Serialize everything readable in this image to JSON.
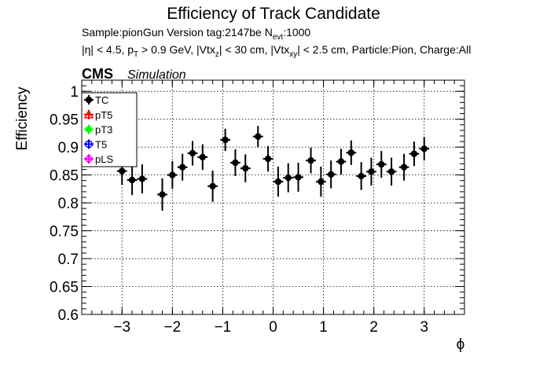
{
  "header": {
    "title": "Efficiency of Track Candidate",
    "sample_line_prefix": "Sample:pionGun   Version tag:2147be  N",
    "sample_line_sub": "evt",
    "sample_line_suffix": ":1000",
    "cuts_line": {
      "seg1": "|η| < 4.5, p",
      "sub1": "T",
      "seg2": " > 0.9 GeV, |Vtx",
      "sub2": "z",
      "seg3": "| < 30 cm, |Vtx",
      "sub3": "xy",
      "seg4": "| < 2.5 cm, Particle:Pion, Charge:All"
    },
    "cms_label": "CMS",
    "sim_label": "Simulation"
  },
  "colors": {
    "tc": "#000000",
    "pt5": "#ff0000",
    "pt3": "#00ff00",
    "t5": "#0000ff",
    "pls": "#ff00ff"
  },
  "chart_data": {
    "type": "scatter",
    "xlabel": "ϕ",
    "ylabel": "Efficiency",
    "xlim": [
      -3.8,
      3.8
    ],
    "ylim": [
      0.6,
      1.02
    ],
    "grid": true,
    "legend_position": "top-left",
    "x_ticks": [
      -3,
      -2,
      -1,
      0,
      1,
      2,
      3
    ],
    "x_tick_labels": [
      "−3",
      "−2",
      "−1",
      "0",
      "1",
      "2",
      "3"
    ],
    "y_ticks": [
      0.6,
      0.65,
      0.7,
      0.75,
      0.8,
      0.85,
      0.9,
      0.95,
      1.0
    ],
    "y_tick_labels": [
      "0.6",
      "0.65",
      "0.7",
      "0.75",
      "0.8",
      "0.85",
      "0.9",
      "0.95",
      "1"
    ],
    "legend": [
      {
        "label": "TC",
        "color_key": "tc",
        "marker": "circle-filled"
      },
      {
        "label": "pT5",
        "color_key": "pt5",
        "marker": "triangle-open"
      },
      {
        "label": "pT3",
        "color_key": "pt3",
        "marker": "circle-filled"
      },
      {
        "label": "T5",
        "color_key": "t5",
        "marker": "circle-open"
      },
      {
        "label": "pLS",
        "color_key": "pls",
        "marker": "diamond-cross"
      }
    ],
    "series": [
      {
        "name": "TC",
        "x_half_width": 0.1,
        "points": [
          {
            "x": -3.0,
            "y": 0.857,
            "err": 0.025
          },
          {
            "x": -2.8,
            "y": 0.841,
            "err": 0.027
          },
          {
            "x": -2.6,
            "y": 0.843,
            "err": 0.026
          },
          {
            "x": -2.2,
            "y": 0.815,
            "err": 0.029
          },
          {
            "x": -2.0,
            "y": 0.85,
            "err": 0.025
          },
          {
            "x": -1.8,
            "y": 0.864,
            "err": 0.024
          },
          {
            "x": -1.6,
            "y": 0.889,
            "err": 0.022
          },
          {
            "x": -1.4,
            "y": 0.882,
            "err": 0.023
          },
          {
            "x": -1.2,
            "y": 0.83,
            "err": 0.028
          },
          {
            "x": -0.95,
            "y": 0.913,
            "err": 0.02
          },
          {
            "x": -0.75,
            "y": 0.872,
            "err": 0.024
          },
          {
            "x": -0.55,
            "y": 0.862,
            "err": 0.025
          },
          {
            "x": -0.3,
            "y": 0.919,
            "err": 0.019
          },
          {
            "x": -0.1,
            "y": 0.879,
            "err": 0.023
          },
          {
            "x": 0.1,
            "y": 0.838,
            "err": 0.027
          },
          {
            "x": 0.3,
            "y": 0.845,
            "err": 0.026
          },
          {
            "x": 0.5,
            "y": 0.846,
            "err": 0.026
          },
          {
            "x": 0.75,
            "y": 0.876,
            "err": 0.023
          },
          {
            "x": 0.95,
            "y": 0.838,
            "err": 0.027
          },
          {
            "x": 1.15,
            "y": 0.851,
            "err": 0.025
          },
          {
            "x": 1.35,
            "y": 0.874,
            "err": 0.023
          },
          {
            "x": 1.55,
            "y": 0.89,
            "err": 0.022
          },
          {
            "x": 1.75,
            "y": 0.848,
            "err": 0.025
          },
          {
            "x": 1.95,
            "y": 0.856,
            "err": 0.025
          },
          {
            "x": 2.15,
            "y": 0.869,
            "err": 0.024
          },
          {
            "x": 2.35,
            "y": 0.856,
            "err": 0.025
          },
          {
            "x": 2.6,
            "y": 0.864,
            "err": 0.024
          },
          {
            "x": 2.8,
            "y": 0.888,
            "err": 0.022
          },
          {
            "x": 3.0,
            "y": 0.897,
            "err": 0.021
          }
        ]
      }
    ]
  }
}
